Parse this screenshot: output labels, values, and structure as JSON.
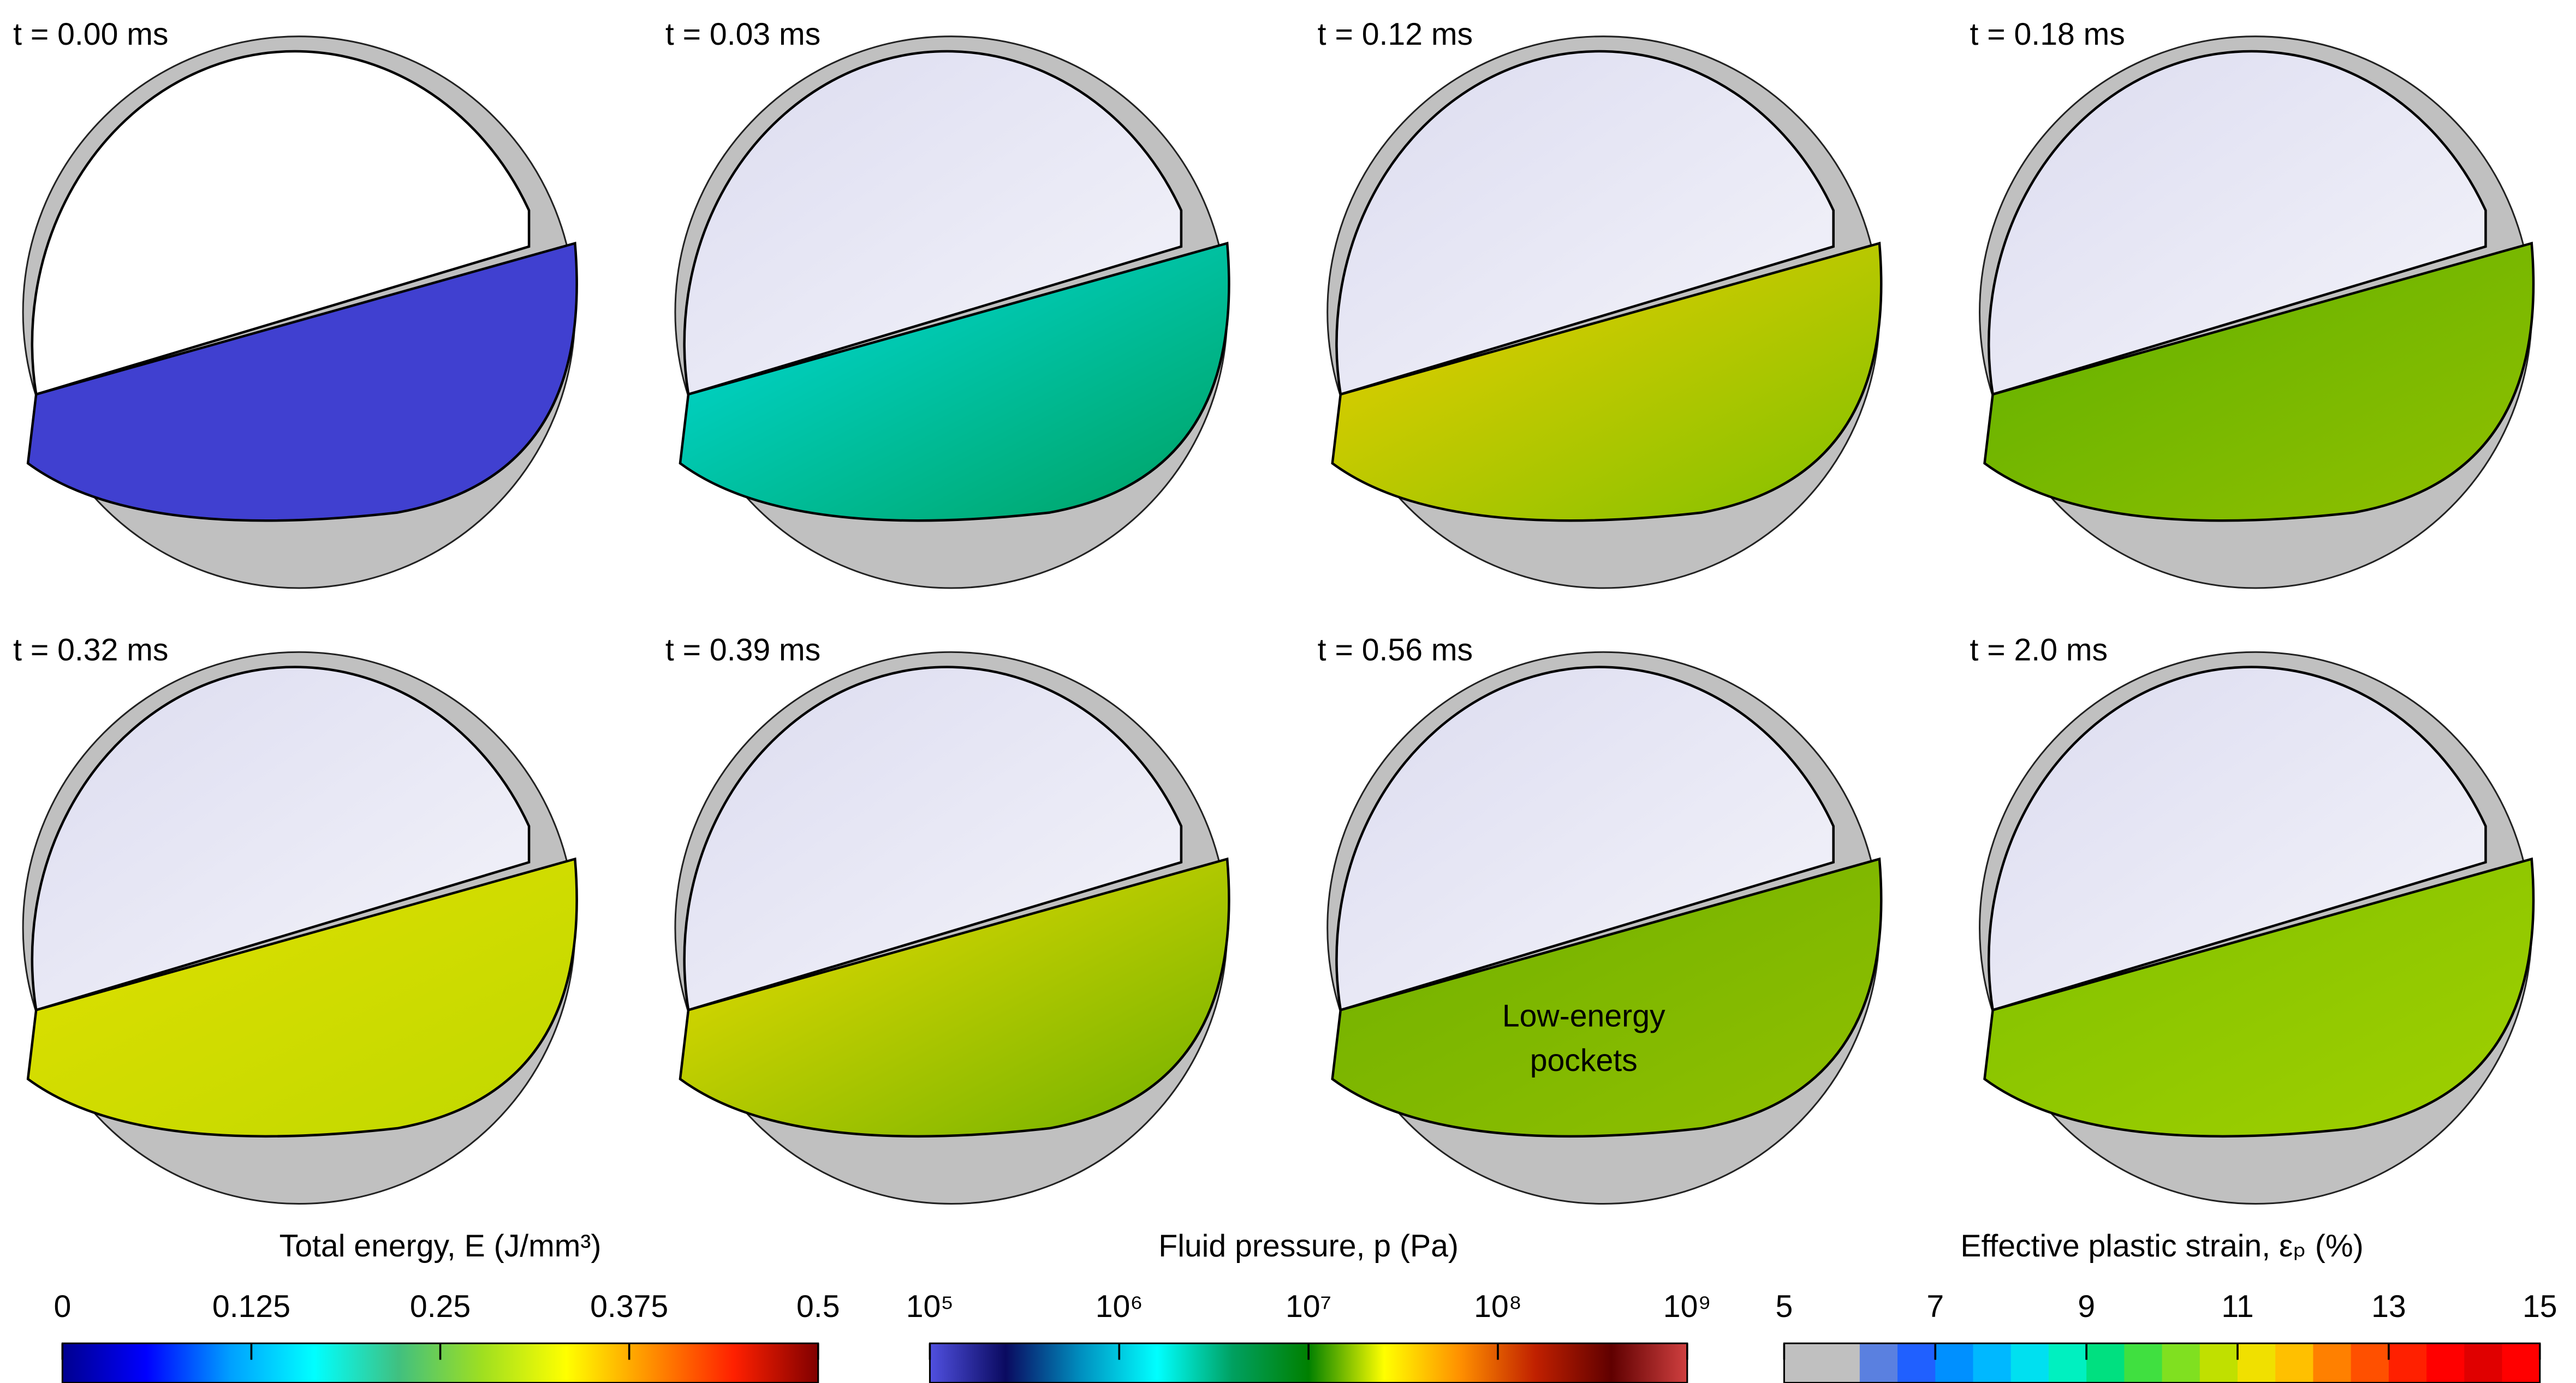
{
  "panels": [
    {
      "label": "t = 0.00 ms"
    },
    {
      "label": "t = 0.03 ms"
    },
    {
      "label": "t = 0.12 ms"
    },
    {
      "label": "t = 0.18 ms"
    },
    {
      "label": "t = 0.32 ms"
    },
    {
      "label": "t = 0.39 ms"
    },
    {
      "label": "t = 0.56 ms"
    },
    {
      "label": "t = 2.0 ms"
    }
  ],
  "annotation": [
    "Low-energy",
    "pockets"
  ],
  "colorbars": [
    {
      "title": "Total energy, E (J/mm³)",
      "scale": "linear",
      "lim": [
        0,
        0.5
      ],
      "ticks": [
        0,
        0.125,
        0.25,
        0.375,
        0.5
      ],
      "colors": [
        "#00008f",
        "#0000ff",
        "#00a0ff",
        "#00ffff",
        "#40c080",
        "#9fdf20",
        "#ffff00",
        "#ff9000",
        "#ff2000",
        "#800000"
      ]
    },
    {
      "title": "Fluid pressure, p (Pa)",
      "scale": "log",
      "lim": [
        100000,
        1000000000
      ],
      "ticks": [
        {
          "value": 100000,
          "label": "10⁵"
        },
        {
          "value": 1000000,
          "label": "10⁶"
        },
        {
          "value": 10000000,
          "label": "10⁷"
        },
        {
          "value": 100000000,
          "label": "10⁸"
        },
        {
          "value": 1000000000,
          "label": "10⁹"
        }
      ],
      "colors": [
        "#5050e0",
        "#0a0a60",
        "#0090c0",
        "#00ffff",
        "#00a060",
        "#008000",
        "#ffff00",
        "#ff9000",
        "#c02000",
        "#600000",
        "#d04040"
      ]
    },
    {
      "title": "Effective plastic strain, εₚ (%)",
      "scale": "linear",
      "lim": [
        5,
        15
      ],
      "ticks": [
        5,
        7,
        9,
        11,
        13,
        15
      ],
      "colors": [
        "#c0c0c0",
        "#c0c0c0",
        "#5a80e0",
        "#2060ff",
        "#0090ff",
        "#00b8ff",
        "#00e0f0",
        "#00f0c0",
        "#00e080",
        "#40e040",
        "#80e020",
        "#c0e000",
        "#f0e000",
        "#ffc000",
        "#ff8000",
        "#ff5000",
        "#ff2000",
        "#ff0000",
        "#e00000",
        "#ff0000"
      ]
    }
  ]
}
